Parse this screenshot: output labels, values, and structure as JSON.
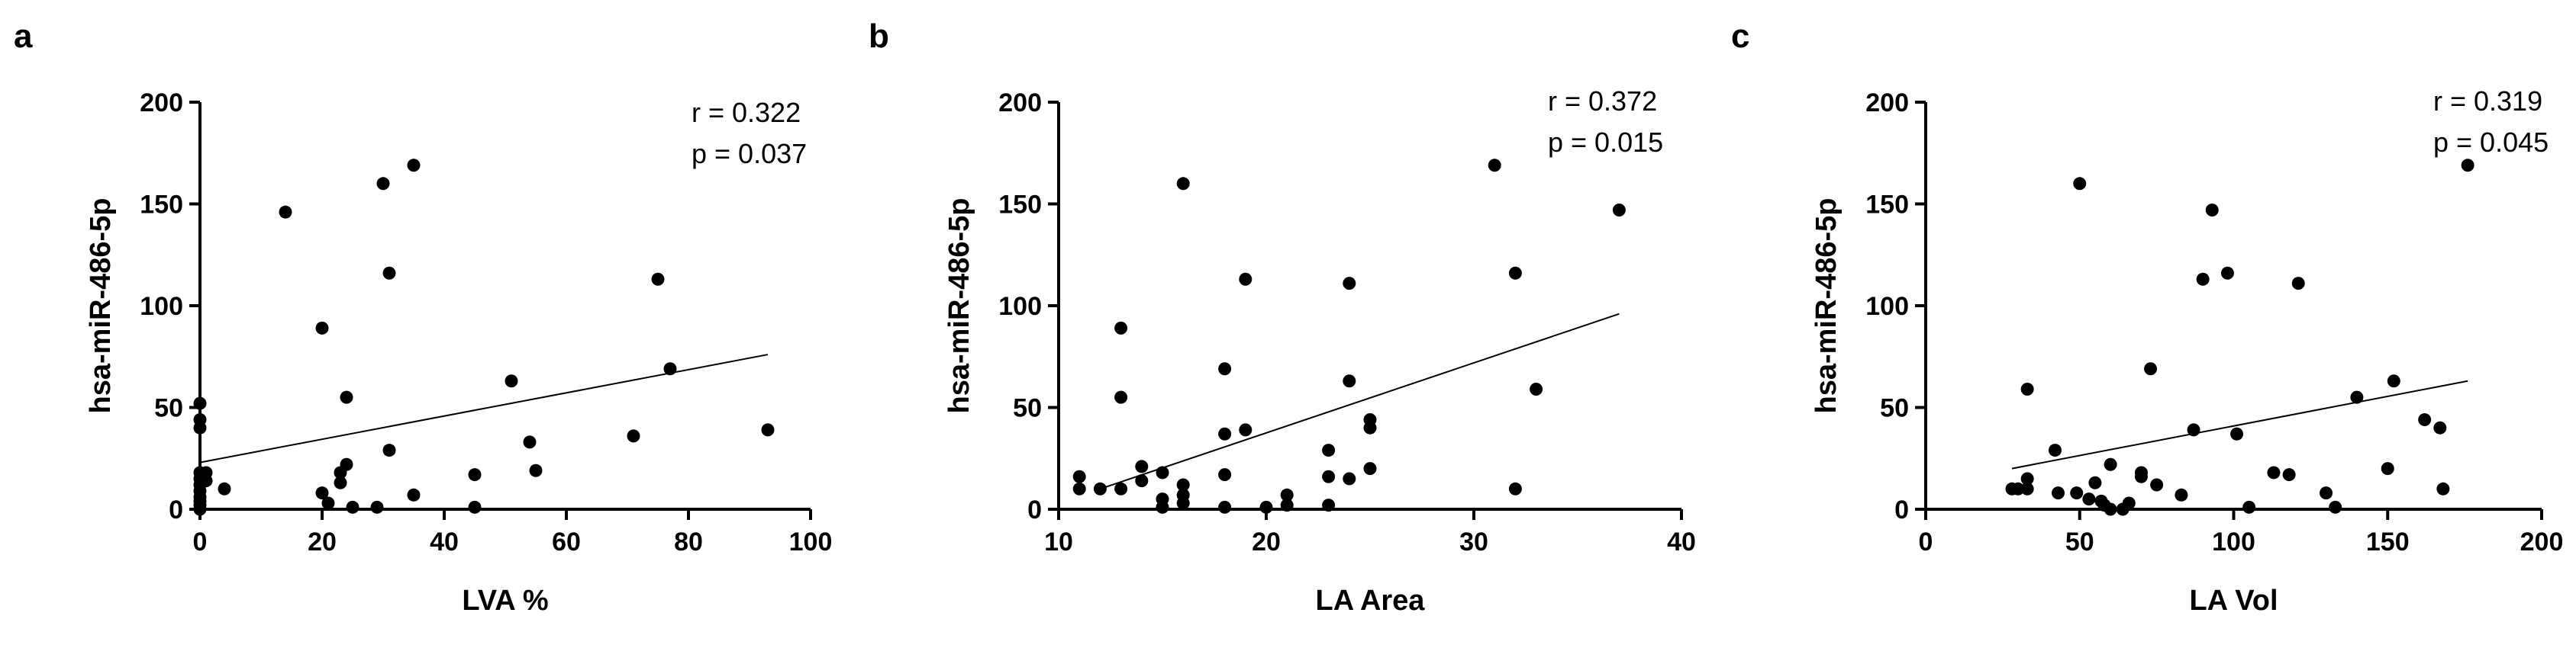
{
  "chart_data": [
    {
      "type": "scatter",
      "panel": "a",
      "xlabel": "LVA  %",
      "ylabel": "hsa-miR-486-5p",
      "xlim": [
        0,
        100
      ],
      "ylim": [
        0,
        200
      ],
      "xticks": [
        0,
        20,
        40,
        60,
        80,
        100
      ],
      "yticks": [
        0,
        50,
        100,
        150,
        200
      ],
      "annotations": [
        "r = 0.322",
        "p = 0.037"
      ],
      "trendline": {
        "x": [
          0,
          93
        ],
        "y": [
          23,
          76
        ]
      },
      "points": [
        [
          0,
          40
        ],
        [
          0,
          44
        ],
        [
          0,
          52
        ],
        [
          0,
          18
        ],
        [
          0,
          15
        ],
        [
          0,
          12
        ],
        [
          0,
          9
        ],
        [
          0,
          6
        ],
        [
          0,
          4
        ],
        [
          0,
          2
        ],
        [
          0,
          0
        ],
        [
          1,
          18
        ],
        [
          1,
          14
        ],
        [
          4,
          10
        ],
        [
          14,
          146
        ],
        [
          20,
          89
        ],
        [
          20,
          8
        ],
        [
          21,
          3
        ],
        [
          23,
          18
        ],
        [
          23,
          13
        ],
        [
          24,
          55
        ],
        [
          24,
          22
        ],
        [
          25,
          1
        ],
        [
          29,
          1
        ],
        [
          30,
          160
        ],
        [
          31,
          29
        ],
        [
          31,
          116
        ],
        [
          35,
          169
        ],
        [
          35,
          7
        ],
        [
          45,
          17
        ],
        [
          45,
          1
        ],
        [
          51,
          63
        ],
        [
          54,
          33
        ],
        [
          55,
          19
        ],
        [
          71,
          36
        ],
        [
          75,
          113
        ],
        [
          77,
          69
        ],
        [
          93,
          39
        ]
      ]
    },
    {
      "type": "scatter",
      "panel": "b",
      "xlabel": "LA Area",
      "ylabel": "hsa-miR-486-5p",
      "xlim": [
        10,
        40
      ],
      "ylim": [
        0,
        200
      ],
      "xticks": [
        10,
        20,
        30,
        40
      ],
      "yticks": [
        0,
        50,
        100,
        150,
        200
      ],
      "annotations": [
        "r = 0.372",
        "p = 0.015"
      ],
      "trendline": {
        "x": [
          12,
          37
        ],
        "y": [
          10,
          96
        ]
      },
      "points": [
        [
          11,
          16
        ],
        [
          11,
          10
        ],
        [
          12,
          10
        ],
        [
          13,
          89
        ],
        [
          13,
          55
        ],
        [
          13,
          10
        ],
        [
          14,
          21
        ],
        [
          14,
          14
        ],
        [
          15,
          5
        ],
        [
          15,
          18
        ],
        [
          15,
          1
        ],
        [
          16,
          160
        ],
        [
          16,
          12
        ],
        [
          16,
          7
        ],
        [
          16,
          3
        ],
        [
          18,
          69
        ],
        [
          18,
          37
        ],
        [
          18,
          17
        ],
        [
          18,
          1
        ],
        [
          19,
          113
        ],
        [
          19,
          39
        ],
        [
          20,
          1
        ],
        [
          21,
          7
        ],
        [
          21,
          2
        ],
        [
          23,
          29
        ],
        [
          23,
          16
        ],
        [
          23,
          2
        ],
        [
          24,
          111
        ],
        [
          24,
          63
        ],
        [
          24,
          15
        ],
        [
          25,
          44
        ],
        [
          25,
          40
        ],
        [
          25,
          20
        ],
        [
          31,
          169
        ],
        [
          32,
          116
        ],
        [
          32,
          10
        ],
        [
          33,
          59
        ],
        [
          37,
          147
        ]
      ]
    },
    {
      "type": "scatter",
      "panel": "c",
      "xlabel": "LA Vol",
      "ylabel": "hsa-miR-486-5p",
      "xlim": [
        0,
        200
      ],
      "ylim": [
        0,
        200
      ],
      "xticks": [
        0,
        50,
        100,
        150,
        200
      ],
      "yticks": [
        0,
        50,
        100,
        150,
        200
      ],
      "annotations": [
        "r = 0.319",
        "p = 0.045"
      ],
      "trendline": {
        "x": [
          28,
          176
        ],
        "y": [
          20,
          63
        ]
      },
      "points": [
        [
          28,
          10
        ],
        [
          30,
          10
        ],
        [
          33,
          10
        ],
        [
          33,
          15
        ],
        [
          33,
          59
        ],
        [
          42,
          29
        ],
        [
          43,
          8
        ],
        [
          49,
          8
        ],
        [
          50,
          160
        ],
        [
          53,
          5
        ],
        [
          55,
          13
        ],
        [
          57,
          4
        ],
        [
          58,
          2
        ],
        [
          60,
          22
        ],
        [
          60,
          0
        ],
        [
          64,
          0
        ],
        [
          66,
          3
        ],
        [
          70,
          16
        ],
        [
          70,
          18
        ],
        [
          73,
          69
        ],
        [
          75,
          12
        ],
        [
          83,
          7
        ],
        [
          87,
          39
        ],
        [
          90,
          113
        ],
        [
          93,
          147
        ],
        [
          98,
          116
        ],
        [
          101,
          37
        ],
        [
          105,
          1
        ],
        [
          113,
          18
        ],
        [
          118,
          17
        ],
        [
          121,
          111
        ],
        [
          130,
          8
        ],
        [
          133,
          1
        ],
        [
          140,
          55
        ],
        [
          150,
          20
        ],
        [
          152,
          63
        ],
        [
          162,
          44
        ],
        [
          167,
          40
        ],
        [
          168,
          10
        ],
        [
          176,
          169
        ]
      ]
    }
  ]
}
